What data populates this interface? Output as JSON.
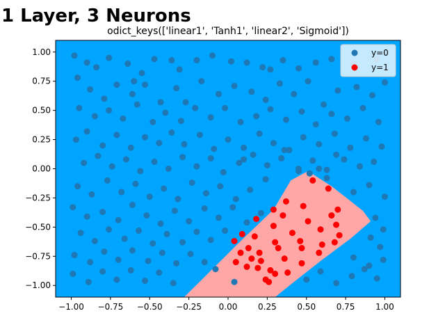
{
  "headline": "1 Layer, 3 Neurons",
  "chart_data": {
    "type": "scatter",
    "title": "odict_keys(['linear1', 'Tanh1', 'linear2', 'Sigmoid'])",
    "xlabel": "",
    "ylabel": "",
    "xlim": [
      -1.1,
      1.1
    ],
    "ylim": [
      -1.1,
      1.1
    ],
    "x_ticks": [
      "−1.00",
      "−0.75",
      "−0.50",
      "−0.25",
      "0.00",
      "0.25",
      "0.50",
      "0.75",
      "1.00"
    ],
    "y_ticks": [
      "1.00",
      "0.75",
      "0.50",
      "0.25",
      "0.00",
      "−0.25",
      "−0.50",
      "−0.75",
      "−1.00"
    ],
    "x_tick_values": [
      -1.0,
      -0.75,
      -0.5,
      -0.25,
      0.0,
      0.25,
      0.5,
      0.75,
      1.0
    ],
    "y_tick_values": [
      1.0,
      0.75,
      0.5,
      0.25,
      0.0,
      -0.25,
      -0.5,
      -0.75,
      -1.0
    ],
    "grid": false,
    "legend_position": "top-right",
    "background_color": "#00a5ff",
    "decision_region_color": "#ffa6a6",
    "decision_region_polygon": [
      [
        -0.28,
        -1.1
      ],
      [
        0.08,
        -0.62
      ],
      [
        0.29,
        -0.35
      ],
      [
        0.4,
        -0.1
      ],
      [
        0.51,
        -0.02
      ],
      [
        0.66,
        -0.15
      ],
      [
        0.86,
        -0.36
      ],
      [
        0.91,
        -0.45
      ],
      [
        0.78,
        -0.6
      ],
      [
        0.6,
        -0.78
      ],
      [
        0.42,
        -0.97
      ],
      [
        0.3,
        -1.1
      ]
    ],
    "series": [
      {
        "name": "y=0",
        "color": "#1f77b4",
        "points": [
          [
            -0.98,
            0.97
          ],
          [
            -0.9,
            0.91
          ],
          [
            -0.84,
            0.87
          ],
          [
            -0.76,
            0.95
          ],
          [
            -0.64,
            0.9
          ],
          [
            -0.55,
            0.82
          ],
          [
            -0.47,
            0.94
          ],
          [
            -0.36,
            0.93
          ],
          [
            -0.31,
            0.85
          ],
          [
            -0.2,
            0.93
          ],
          [
            -0.1,
            0.97
          ],
          [
            0.02,
            0.92
          ],
          [
            0.12,
            0.91
          ],
          [
            0.22,
            0.87
          ],
          [
            0.35,
            0.93
          ],
          [
            0.45,
            0.86
          ],
          [
            0.56,
            0.91
          ],
          [
            0.66,
            0.94
          ],
          [
            0.8,
            0.9
          ],
          [
            0.95,
            0.94
          ],
          [
            -0.96,
            0.78
          ],
          [
            -0.88,
            0.68
          ],
          [
            -0.79,
            0.6
          ],
          [
            -0.71,
            0.72
          ],
          [
            -0.61,
            0.64
          ],
          [
            -0.53,
            0.72
          ],
          [
            -0.43,
            0.57
          ],
          [
            -0.33,
            0.69
          ],
          [
            -0.27,
            0.57
          ],
          [
            -0.17,
            0.75
          ],
          [
            -0.06,
            0.64
          ],
          [
            0.04,
            0.71
          ],
          [
            0.15,
            0.66
          ],
          [
            0.24,
            0.59
          ],
          [
            0.33,
            0.73
          ],
          [
            0.42,
            0.64
          ],
          [
            0.51,
            0.75
          ],
          [
            0.61,
            0.55
          ],
          [
            0.7,
            0.67
          ],
          [
            0.82,
            0.7
          ],
          [
            0.92,
            0.63
          ],
          [
            1.0,
            0.74
          ],
          [
            -0.95,
            0.52
          ],
          [
            -0.85,
            0.45
          ],
          [
            -0.76,
            0.5
          ],
          [
            -0.67,
            0.43
          ],
          [
            -0.58,
            0.55
          ],
          [
            -0.48,
            0.4
          ],
          [
            -0.4,
            0.48
          ],
          [
            -0.3,
            0.41
          ],
          [
            -0.21,
            0.52
          ],
          [
            -0.11,
            0.44
          ],
          [
            -0.02,
            0.52
          ],
          [
            0.08,
            0.4
          ],
          [
            0.18,
            0.45
          ],
          [
            0.27,
            0.51
          ],
          [
            0.37,
            0.42
          ],
          [
            0.47,
            0.49
          ],
          [
            0.56,
            0.38
          ],
          [
            0.66,
            0.47
          ],
          [
            0.76,
            0.43
          ],
          [
            0.86,
            0.52
          ],
          [
            0.96,
            0.4
          ],
          [
            -0.97,
            0.25
          ],
          [
            -0.9,
            0.32
          ],
          [
            -0.8,
            0.2
          ],
          [
            -0.71,
            0.29
          ],
          [
            -0.62,
            0.18
          ],
          [
            -0.53,
            0.27
          ],
          [
            -0.44,
            0.22
          ],
          [
            -0.36,
            0.31
          ],
          [
            -0.28,
            0.21
          ],
          [
            -0.18,
            0.29
          ],
          [
            -0.09,
            0.17
          ],
          [
            0.0,
            0.25
          ],
          [
            0.1,
            0.18
          ],
          [
            0.2,
            0.3
          ],
          [
            0.29,
            0.22
          ],
          [
            0.39,
            0.16
          ],
          [
            0.48,
            0.27
          ],
          [
            0.58,
            0.21
          ],
          [
            0.68,
            0.3
          ],
          [
            0.78,
            0.18
          ],
          [
            0.88,
            0.26
          ],
          [
            0.98,
            0.19
          ],
          [
            -0.92,
            0.05
          ],
          [
            -0.83,
            0.11
          ],
          [
            -0.74,
            0.02
          ],
          [
            -0.65,
            0.08
          ],
          [
            -0.56,
            -0.02
          ],
          [
            -0.47,
            0.06
          ],
          [
            -0.38,
            0.0
          ],
          [
            -0.29,
            0.1
          ],
          [
            -0.2,
            0.02
          ],
          [
            -0.11,
            0.09
          ],
          [
            -0.03,
            -0.03
          ],
          [
            0.07,
            0.05
          ],
          [
            0.16,
            0.12
          ],
          [
            0.25,
            0.03
          ],
          [
            0.34,
            0.09
          ],
          [
            0.45,
            -0.02
          ],
          [
            0.54,
            0.07
          ],
          [
            0.63,
            -0.01
          ],
          [
            0.74,
            0.08
          ],
          [
            0.84,
            0.02
          ],
          [
            0.93,
            0.06
          ],
          [
            -0.96,
            -0.15
          ],
          [
            -0.87,
            -0.22
          ],
          [
            -0.77,
            -0.1
          ],
          [
            -0.68,
            -0.2
          ],
          [
            -0.59,
            -0.13
          ],
          [
            -0.5,
            -0.24
          ],
          [
            -0.41,
            -0.17
          ],
          [
            -0.32,
            -0.26
          ],
          [
            -0.23,
            -0.12
          ],
          [
            -0.14,
            -0.21
          ],
          [
            -0.05,
            -0.15
          ],
          [
            0.05,
            -0.26
          ],
          [
            0.14,
            -0.18
          ],
          [
            0.24,
            -0.09
          ],
          [
            0.8,
            -0.2
          ],
          [
            0.9,
            -0.14
          ],
          [
            1.0,
            -0.24
          ],
          [
            -0.99,
            -0.33
          ],
          [
            -0.9,
            -0.41
          ],
          [
            -0.8,
            -0.37
          ],
          [
            -0.7,
            -0.44
          ],
          [
            -0.61,
            -0.31
          ],
          [
            -0.52,
            -0.4
          ],
          [
            -0.43,
            -0.47
          ],
          [
            -0.34,
            -0.36
          ],
          [
            -0.25,
            -0.45
          ],
          [
            -0.15,
            -0.34
          ],
          [
            -0.06,
            -0.42
          ],
          [
            0.03,
            -0.33
          ],
          [
            0.12,
            -0.46
          ],
          [
            0.21,
            -0.38
          ],
          [
            0.94,
            -0.42
          ],
          [
            0.99,
            -0.52
          ],
          [
            -0.94,
            -0.55
          ],
          [
            -0.85,
            -0.62
          ],
          [
            -0.76,
            -0.52
          ],
          [
            -0.66,
            -0.6
          ],
          [
            -0.57,
            -0.53
          ],
          [
            -0.48,
            -0.64
          ],
          [
            -0.39,
            -0.56
          ],
          [
            -0.29,
            -0.63
          ],
          [
            -0.2,
            -0.54
          ],
          [
            -0.11,
            -0.61
          ],
          [
            -0.02,
            -0.53
          ],
          [
            0.91,
            -0.59
          ],
          [
            0.97,
            -0.67
          ],
          [
            -0.98,
            -0.74
          ],
          [
            -0.88,
            -0.8
          ],
          [
            -0.79,
            -0.71
          ],
          [
            -0.7,
            -0.78
          ],
          [
            -0.61,
            -0.7
          ],
          [
            -0.51,
            -0.79
          ],
          [
            -0.42,
            -0.72
          ],
          [
            -0.33,
            -0.81
          ],
          [
            -0.24,
            -0.73
          ],
          [
            -0.15,
            -0.8
          ],
          [
            0.8,
            -0.76
          ],
          [
            0.9,
            -0.83
          ],
          [
            0.99,
            -0.78
          ],
          [
            -0.99,
            -0.9
          ],
          [
            -0.89,
            -0.97
          ],
          [
            -0.8,
            -0.88
          ],
          [
            -0.71,
            -0.95
          ],
          [
            -0.62,
            -0.87
          ],
          [
            -0.53,
            -0.96
          ],
          [
            -0.44,
            -0.89
          ],
          [
            -0.35,
            -0.98
          ],
          [
            -0.08,
            -0.86
          ],
          [
            0.04,
            -0.97
          ],
          [
            0.5,
            -0.95
          ],
          [
            0.59,
            -0.88
          ],
          [
            0.69,
            -0.98
          ],
          [
            0.79,
            -0.92
          ],
          [
            0.87,
            -0.86
          ],
          [
            0.95,
            -0.94
          ],
          [
            0.45,
            0.0
          ],
          [
            0.63,
            -0.08
          ],
          [
            0.52,
            -0.04
          ],
          [
            0.58,
            0.0
          ],
          [
            0.69,
            0.12
          ],
          [
            0.36,
            0.16
          ],
          [
            0.1,
            0.08
          ],
          [
            -0.6,
            0.75
          ],
          [
            0.27,
            0.85
          ]
        ]
      },
      {
        "name": "y=1",
        "color": "#ff0000",
        "points": [
          [
            0.54,
            -0.1
          ],
          [
            0.64,
            -0.17
          ],
          [
            0.37,
            -0.28
          ],
          [
            0.48,
            -0.32
          ],
          [
            0.66,
            -0.4
          ],
          [
            0.7,
            -0.35
          ],
          [
            0.29,
            -0.35
          ],
          [
            0.35,
            -0.4
          ],
          [
            0.51,
            -0.45
          ],
          [
            0.59,
            -0.52
          ],
          [
            0.69,
            -0.48
          ],
          [
            0.29,
            -0.49
          ],
          [
            0.17,
            -0.58
          ],
          [
            0.09,
            -0.56
          ],
          [
            0.04,
            -0.62
          ],
          [
            0.41,
            -0.55
          ],
          [
            0.46,
            -0.62
          ],
          [
            0.6,
            -0.65
          ],
          [
            0.71,
            -0.57
          ],
          [
            0.68,
            -0.63
          ],
          [
            0.47,
            -0.68
          ],
          [
            0.3,
            -0.63
          ],
          [
            0.2,
            -0.72
          ],
          [
            0.13,
            -0.68
          ],
          [
            0.08,
            -0.72
          ],
          [
            0.05,
            -0.8
          ],
          [
            0.21,
            -0.79
          ],
          [
            0.27,
            -0.87
          ],
          [
            0.19,
            -0.85
          ],
          [
            0.12,
            -0.84
          ],
          [
            0.24,
            -0.95
          ],
          [
            0.3,
            -0.9
          ],
          [
            0.36,
            -0.77
          ],
          [
            0.47,
            -0.81
          ],
          [
            0.38,
            -0.89
          ],
          [
            0.15,
            -0.77
          ],
          [
            0.58,
            -0.72
          ],
          [
            0.26,
            -0.97
          ],
          [
            0.32,
            -0.68
          ],
          [
            0.18,
            -0.43
          ]
        ]
      }
    ]
  }
}
